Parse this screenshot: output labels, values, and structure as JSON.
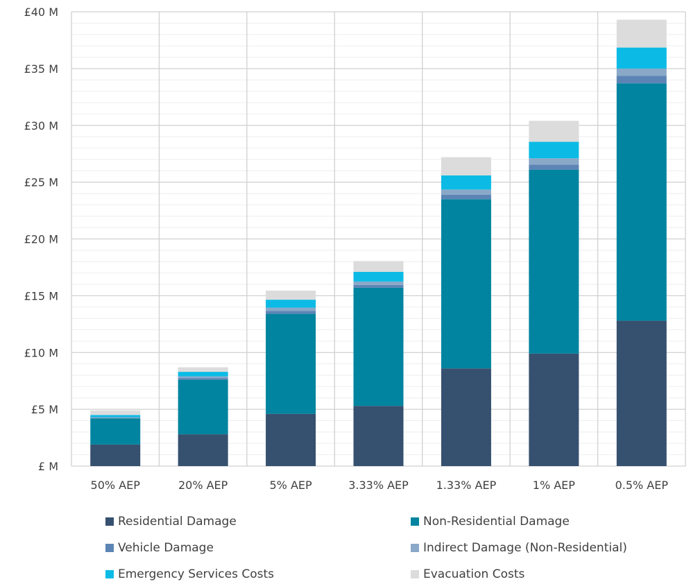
{
  "chart_data": {
    "type": "bar",
    "stacked": true,
    "title": "",
    "xlabel": "",
    "ylabel": "",
    "categories": [
      "50% AEP",
      "20% AEP",
      "5% AEP",
      "3.33% AEP",
      "1.33% AEP",
      "1% AEP",
      "0.5% AEP"
    ],
    "ylim": [
      0,
      40
    ],
    "yticks": [
      0,
      5,
      10,
      15,
      20,
      25,
      30,
      35,
      40
    ],
    "ytick_labels": [
      "£ M",
      "£5 M",
      "£10 M",
      "£15 M",
      "£20 M",
      "£25 M",
      "£30 M",
      "£35 M",
      "£40 M"
    ],
    "grid": true,
    "legend_position": "bottom",
    "series": [
      {
        "name": "Residential Damage",
        "color": "#36506f",
        "values": [
          1.9,
          2.8,
          4.6,
          5.3,
          8.6,
          9.9,
          12.8
        ]
      },
      {
        "name": "Non-Residential Damage",
        "color": "#00849f",
        "values": [
          2.3,
          4.8,
          8.8,
          10.4,
          14.9,
          16.2,
          20.9
        ]
      },
      {
        "name": "Vehicle Damage",
        "color": "#5c85b5",
        "values": [
          0.05,
          0.15,
          0.25,
          0.25,
          0.4,
          0.45,
          0.65
        ]
      },
      {
        "name": "Indirect Damage (Non-Residential)",
        "color": "#8aa8c8",
        "values": [
          0.05,
          0.15,
          0.3,
          0.3,
          0.45,
          0.55,
          0.65
        ]
      },
      {
        "name": "Emergency Services Costs",
        "color": "#0bbbe5",
        "values": [
          0.2,
          0.4,
          0.7,
          0.85,
          1.25,
          1.45,
          1.85
        ]
      },
      {
        "name": "Evacuation Costs",
        "color": "#dcdcdc",
        "values": [
          0.4,
          0.4,
          0.8,
          0.95,
          1.6,
          1.85,
          2.45
        ]
      }
    ]
  }
}
